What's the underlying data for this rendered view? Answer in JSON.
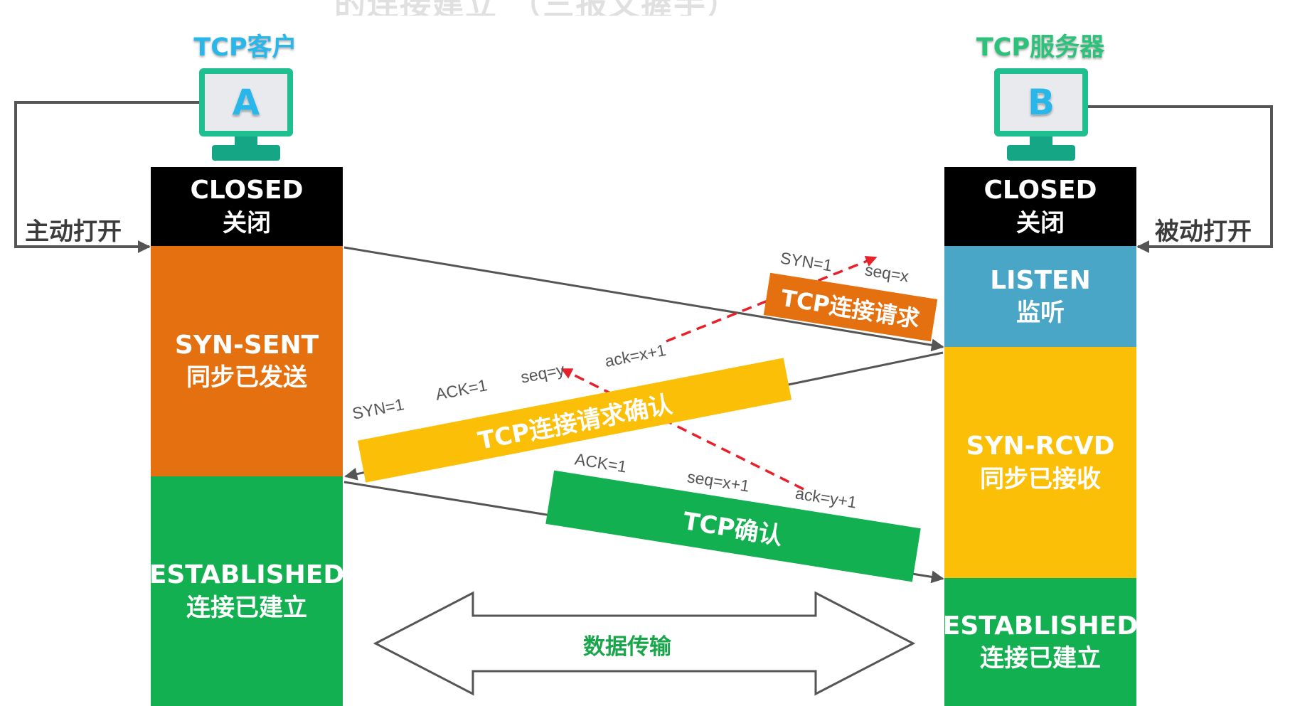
{
  "title_fragment": "的连接建立 （三报文握手）",
  "client": {
    "label": "TCP客户",
    "screen_letter": "A",
    "open_mode": "主动打开"
  },
  "server": {
    "label": "TCP服务器",
    "screen_letter": "B",
    "open_mode": "被动打开"
  },
  "client_states": [
    {
      "en": "CLOSED",
      "zh": "关闭",
      "color": "#000000"
    },
    {
      "en": "SYN-SENT",
      "zh": "同步已发送",
      "color": "#e5700f"
    },
    {
      "en": "ESTABLISHED",
      "zh": "连接已建立",
      "color": "#12b050"
    }
  ],
  "server_states": [
    {
      "en": "CLOSED",
      "zh": "关闭",
      "color": "#000000"
    },
    {
      "en": "LISTEN",
      "zh": "监听",
      "color": "#4aa6c7"
    },
    {
      "en": "SYN-RCVD",
      "zh": "同步已接收",
      "color": "#fbbf07"
    },
    {
      "en": "ESTABLISHED",
      "zh": "连接已建立",
      "color": "#12b050"
    }
  ],
  "messages": [
    {
      "name": "TCP连接请求",
      "color": "#e5700f",
      "fields": [
        "SYN=1",
        "seq=x"
      ]
    },
    {
      "name": "TCP连接请求确认",
      "color": "#fbbf07",
      "fields": [
        "SYN=1",
        "ACK=1",
        "seq=y",
        "ack=x+1"
      ]
    },
    {
      "name": "TCP确认",
      "color": "#12b050",
      "fields": [
        "ACK=1",
        "seq=x+1",
        "ack=y+1"
      ]
    }
  ],
  "data_transfer": "数据传输",
  "colors": {
    "arrow": "#555555",
    "dashed": "#e8202a",
    "monitor": "#1fbf8f"
  }
}
